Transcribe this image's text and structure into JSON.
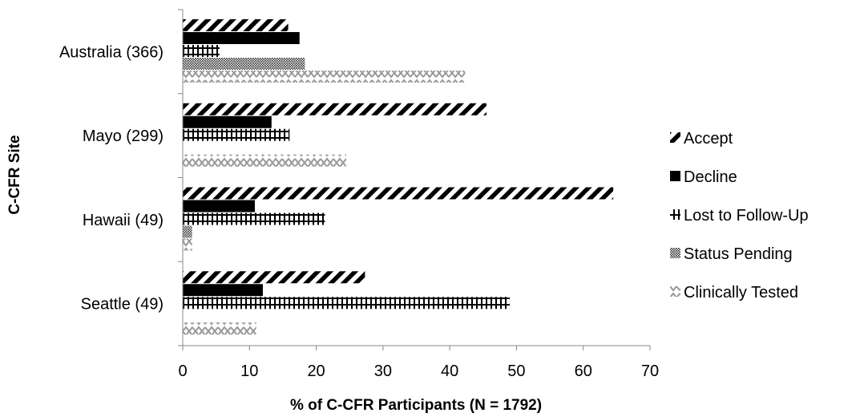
{
  "chart_data": {
    "type": "bar",
    "orientation": "horizontal",
    "xlabel": "% of C-CFR Participants (N = 1792)",
    "ylabel": "C-CFR Site",
    "xlim": [
      0,
      70
    ],
    "x_ticks": [
      0,
      10,
      20,
      30,
      40,
      50,
      60,
      70
    ],
    "grid": false,
    "legend_position": "right",
    "categories": [
      "Australia (366)",
      "Mayo (299)",
      "Hawaii (49)",
      "Seattle (49)"
    ],
    "series": [
      {
        "name": "Accept",
        "pattern": "diagonal-stripes",
        "values": [
          15.8,
          45.5,
          64.5,
          27.3
        ]
      },
      {
        "name": "Decline",
        "pattern": "solid-black",
        "values": [
          17.5,
          13.3,
          10.8,
          12.0
        ]
      },
      {
        "name": "Lost to Follow-Up",
        "pattern": "grid",
        "values": [
          5.5,
          16.0,
          21.3,
          49.0
        ]
      },
      {
        "name": "Status Pending",
        "pattern": "dots",
        "values": [
          18.3,
          0,
          1.4,
          0
        ]
      },
      {
        "name": "Clinically Tested",
        "pattern": "zigzag",
        "values": [
          42.3,
          24.5,
          1.4,
          11.0
        ]
      }
    ]
  }
}
